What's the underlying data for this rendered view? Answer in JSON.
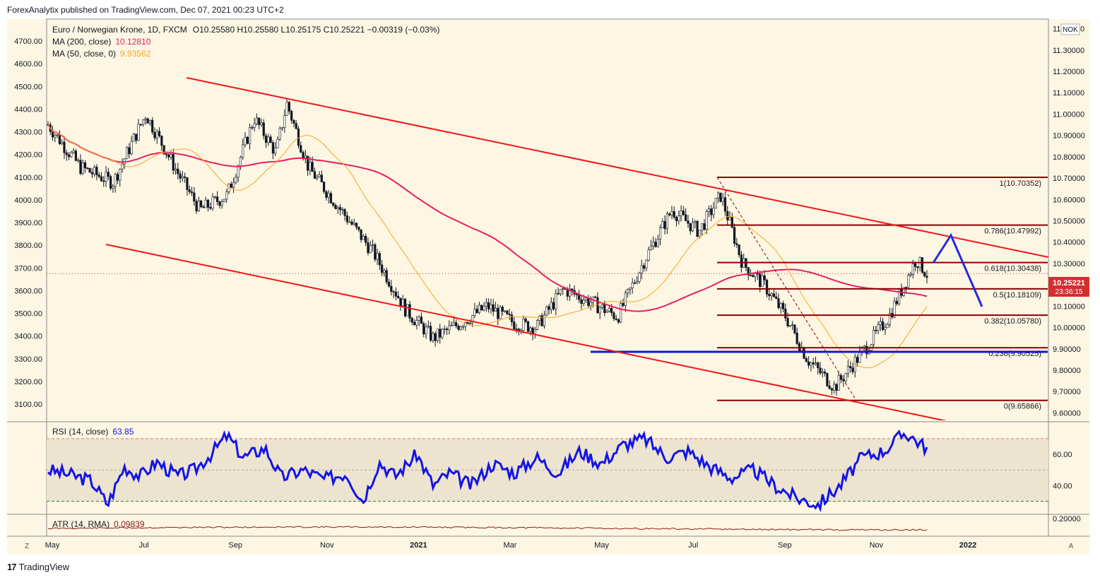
{
  "header": {
    "publisher": "ForexAnalytix published on TradingView.com, Dec 07, 2021 00:23 UTC+2"
  },
  "footer": {
    "brand": "TradingView"
  },
  "legend": {
    "symbol": "Euro / Norwegian Krone, 1D, FXCM",
    "ohlc": "O10.25580  H10.25580  L10.25175  C10.25221  −0.00319 (−0.03%)",
    "ma200_label": "MA (200, close)",
    "ma200_value": "10.12810",
    "ma50_label": "MA (50, close, 0)",
    "ma50_value": "9.93562"
  },
  "currency_badge": "NOK",
  "last_price": {
    "value": "10.25221",
    "countdown": "23:36:15"
  },
  "colors": {
    "background": "#fdf6e3",
    "candle": "#131722",
    "ma200": "#e91e63",
    "ma50": "#f5a623",
    "channel": "#f21717",
    "fib": "#8b0000",
    "support": "#0b1bd6",
    "projection": "#1f2ce0",
    "rsi": "#1414e6",
    "atr": "#8b1a1a",
    "price_tag": "#d32f2f"
  },
  "chart_data": {
    "type": "candlestick",
    "xaxis_labels": [
      "May",
      "Jul",
      "Sep",
      "Nov",
      "2021",
      "Mar",
      "May",
      "Jul",
      "Sep",
      "Nov",
      "2022"
    ],
    "yaxis_right_labels": [
      "11.40000",
      "11.30000",
      "11.20000",
      "11.10000",
      "11.00000",
      "10.90000",
      "10.80000",
      "10.70000",
      "10.60000",
      "10.50000",
      "10.40000",
      "10.30000",
      "10.20000",
      "10.10000",
      "10.00000",
      "9.90000",
      "9.80000",
      "9.70000",
      "9.60000"
    ],
    "yaxis_left_labels": [
      "4700.00",
      "4600.00",
      "4500.00",
      "4400.00",
      "4300.00",
      "4200.00",
      "4100.00",
      "4000.00",
      "3900.00",
      "3800.00",
      "3700.00",
      "3600.00",
      "3500.00",
      "3400.00",
      "3300.00",
      "3200.00",
      "3100.00"
    ],
    "ylim": [
      9.565,
      11.445
    ],
    "fib_levels": [
      {
        "label": "1(10.70352)",
        "value": 10.70352
      },
      {
        "label": "0.786(10.47992)",
        "value": 10.47992
      },
      {
        "label": "0.618(10.30438)",
        "value": 10.30438
      },
      {
        "label": "0.5(10.18109)",
        "value": 10.18109
      },
      {
        "label": "0.382(10.05780)",
        "value": 10.0578
      },
      {
        "label": "0.236(9.90525)",
        "value": 9.90525
      },
      {
        "label": "0(9.65866)",
        "value": 9.65866
      }
    ],
    "close_path": [
      [
        0.0,
        10.95
      ],
      [
        0.06,
        10.75
      ],
      [
        0.12,
        10.68
      ],
      [
        0.18,
        11.0
      ],
      [
        0.24,
        10.72
      ],
      [
        0.28,
        10.55
      ],
      [
        0.33,
        10.62
      ],
      [
        0.38,
        10.98
      ],
      [
        0.42,
        10.82
      ],
      [
        0.44,
        11.05
      ],
      [
        0.48,
        10.75
      ],
      [
        0.54,
        10.55
      ],
      [
        0.6,
        10.35
      ],
      [
        0.66,
        10.08
      ],
      [
        0.71,
        9.95
      ],
      [
        0.76,
        10.02
      ],
      [
        0.81,
        10.1
      ],
      [
        0.86,
        10.02
      ],
      [
        0.9,
        10.0
      ],
      [
        0.95,
        10.18
      ],
      [
        1.0,
        10.12
      ],
      [
        1.05,
        10.05
      ],
      [
        1.1,
        10.32
      ],
      [
        1.15,
        10.55
      ],
      [
        1.2,
        10.45
      ],
      [
        1.24,
        10.62
      ],
      [
        1.28,
        10.3
      ],
      [
        1.32,
        10.2
      ],
      [
        1.36,
        10.05
      ],
      [
        1.4,
        9.85
      ],
      [
        1.45,
        9.72
      ],
      [
        1.5,
        9.88
      ],
      [
        1.55,
        10.05
      ],
      [
        1.6,
        10.32
      ],
      [
        1.62,
        10.25
      ]
    ],
    "rsi": {
      "label": "RSI (14, close)",
      "value": "63.85",
      "upper": 70,
      "lower": 30,
      "ticks": [
        "60.00",
        "40.00"
      ],
      "ylim": [
        23,
        79
      ],
      "path": [
        [
          0.0,
          50
        ],
        [
          0.04,
          47
        ],
        [
          0.08,
          43
        ],
        [
          0.11,
          28
        ],
        [
          0.14,
          52
        ],
        [
          0.17,
          46
        ],
        [
          0.2,
          55
        ],
        [
          0.24,
          46
        ],
        [
          0.27,
          50
        ],
        [
          0.3,
          60
        ],
        [
          0.33,
          72
        ],
        [
          0.36,
          58
        ],
        [
          0.4,
          64
        ],
        [
          0.43,
          45
        ],
        [
          0.47,
          50
        ],
        [
          0.51,
          44
        ],
        [
          0.55,
          48
        ],
        [
          0.58,
          30
        ],
        [
          0.61,
          55
        ],
        [
          0.64,
          46
        ],
        [
          0.68,
          60
        ],
        [
          0.71,
          40
        ],
        [
          0.74,
          48
        ],
        [
          0.78,
          40
        ],
        [
          0.82,
          54
        ],
        [
          0.86,
          48
        ],
        [
          0.9,
          58
        ],
        [
          0.94,
          48
        ],
        [
          0.98,
          62
        ],
        [
          1.02,
          54
        ],
        [
          1.06,
          66
        ],
        [
          1.1,
          70
        ],
        [
          1.14,
          58
        ],
        [
          1.18,
          62
        ],
        [
          1.22,
          52
        ],
        [
          1.26,
          45
        ],
        [
          1.3,
          50
        ],
        [
          1.34,
          40
        ],
        [
          1.38,
          32
        ],
        [
          1.42,
          28
        ],
        [
          1.46,
          40
        ],
        [
          1.5,
          58
        ],
        [
          1.54,
          62
        ],
        [
          1.58,
          74
        ],
        [
          1.62,
          64
        ]
      ]
    },
    "atr": {
      "label": "ATR (14, RMA)",
      "value": "0.09839",
      "tick": "0.20000"
    }
  }
}
